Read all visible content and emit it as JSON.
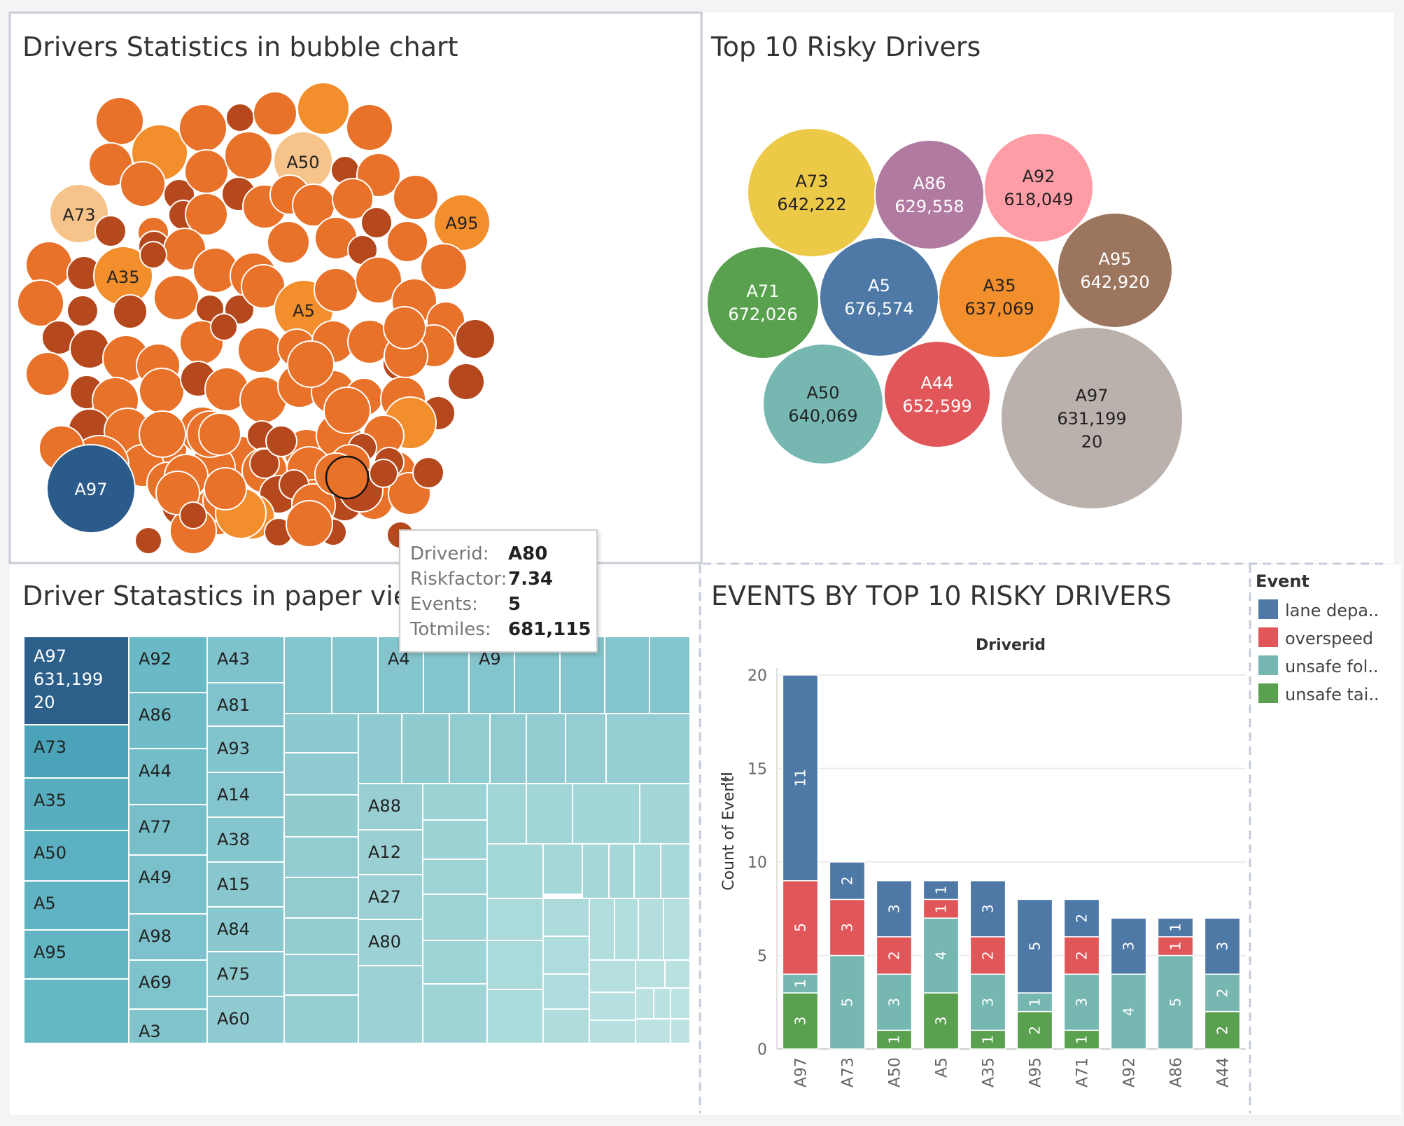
{
  "panels": {
    "bubble_title": "Drivers Statistics in bubble chart",
    "top10_title": "Top 10 Risky Drivers",
    "treemap_title": "Driver Statastics in paper view",
    "events_title": "EVENTS BY TOP 10 RISKY DRIVERS"
  },
  "tooltip": {
    "rows": [
      {
        "key": "Driverid:",
        "value": "A80"
      },
      {
        "key": "Riskfactor:",
        "value": "7.34"
      },
      {
        "key": "Events:",
        "value": "5"
      },
      {
        "key": "Totmiles:",
        "value": "681,115"
      }
    ]
  },
  "legend": {
    "title": "Event",
    "items": [
      {
        "label": "lane depa..",
        "color": "#4e79a7"
      },
      {
        "label": "overspeed",
        "color": "#e15759"
      },
      {
        "label": "unsafe fol..",
        "color": "#76b7b2"
      },
      {
        "label": "unsafe tai..",
        "color": "#59a14f"
      }
    ]
  },
  "colors": {
    "bubble_orange": "#e8722a",
    "bubble_light_orange": "#f28e2b",
    "bubble_pale": "#f6c48a",
    "bubble_dark": "#b5481d",
    "bubble_highlight": "#2b5b8a",
    "treemap_dark": "#2c5f8a",
    "treemap_teal": "#4aa3b8"
  },
  "chart_data": [
    {
      "type": "scatter",
      "title": "Drivers Statistics in bubble chart",
      "labeled_bubbles": [
        "A50",
        "A73",
        "A95",
        "A35",
        "A5",
        "A97"
      ],
      "highlighted": "A97"
    },
    {
      "type": "scatter",
      "title": "Top 10 Risky Drivers",
      "bubbles": [
        {
          "driver": "A73",
          "totmiles": "642,222",
          "color": "#edc948"
        },
        {
          "driver": "A86",
          "totmiles": "629,558",
          "color": "#b07aa1"
        },
        {
          "driver": "A92",
          "totmiles": "618,049",
          "color": "#ff9da7"
        },
        {
          "driver": "A95",
          "totmiles": "642,920",
          "color": "#9c755f"
        },
        {
          "driver": "A71",
          "totmiles": "672,026",
          "color": "#59a14f"
        },
        {
          "driver": "A5",
          "totmiles": "676,574",
          "color": "#4e79a7"
        },
        {
          "driver": "A35",
          "totmiles": "637,069",
          "color": "#f28e2b"
        },
        {
          "driver": "A50",
          "totmiles": "640,069",
          "color": "#76b7b2"
        },
        {
          "driver": "A44",
          "totmiles": "652,599",
          "color": "#e15759"
        },
        {
          "driver": "A97",
          "totmiles": "631,199",
          "events": "20",
          "color": "#bab0ac"
        }
      ]
    },
    {
      "type": "heatmap",
      "title": "Driver Statastics in paper view",
      "labeled_cells": [
        {
          "driver": "A97",
          "totmiles": "631,199",
          "events": "20"
        },
        {
          "driver": "A73"
        },
        {
          "driver": "A35"
        },
        {
          "driver": "A50"
        },
        {
          "driver": "A5"
        },
        {
          "driver": "A95"
        },
        {
          "driver": "A92"
        },
        {
          "driver": "A86"
        },
        {
          "driver": "A44"
        },
        {
          "driver": "A77"
        },
        {
          "driver": "A49"
        },
        {
          "driver": "A98"
        },
        {
          "driver": "A69"
        },
        {
          "driver": "A3"
        },
        {
          "driver": "A43"
        },
        {
          "driver": "A81"
        },
        {
          "driver": "A93"
        },
        {
          "driver": "A14"
        },
        {
          "driver": "A38"
        },
        {
          "driver": "A15"
        },
        {
          "driver": "A84"
        },
        {
          "driver": "A75"
        },
        {
          "driver": "A60"
        },
        {
          "driver": "A4"
        },
        {
          "driver": "A9"
        },
        {
          "driver": "A88"
        },
        {
          "driver": "A12"
        },
        {
          "driver": "A27"
        },
        {
          "driver": "A80"
        }
      ]
    },
    {
      "type": "bar",
      "title": "EVENTS BY TOP 10 RISKY DRIVERS",
      "xlabel": "Driverid",
      "ylabel": "Count of Event",
      "ylim": [
        0,
        20
      ],
      "yticks": [
        0,
        5,
        10,
        15,
        20
      ],
      "categories": [
        "A97",
        "A73",
        "A50",
        "A5",
        "A35",
        "A95",
        "A71",
        "A92",
        "A86",
        "A44"
      ],
      "series": [
        {
          "name": "unsafe tai..",
          "color": "#59a14f",
          "values": [
            3,
            0,
            1,
            3,
            1,
            2,
            1,
            0,
            0,
            2
          ]
        },
        {
          "name": "unsafe fol..",
          "color": "#76b7b2",
          "values": [
            1,
            5,
            3,
            4,
            3,
            1,
            3,
            4,
            5,
            2
          ]
        },
        {
          "name": "overspeed",
          "color": "#e15759",
          "values": [
            5,
            3,
            2,
            1,
            2,
            0,
            2,
            0,
            1,
            0
          ]
        },
        {
          "name": "lane depa..",
          "color": "#4e79a7",
          "values": [
            11,
            2,
            3,
            1,
            3,
            5,
            2,
            3,
            1,
            3
          ]
        }
      ]
    }
  ]
}
